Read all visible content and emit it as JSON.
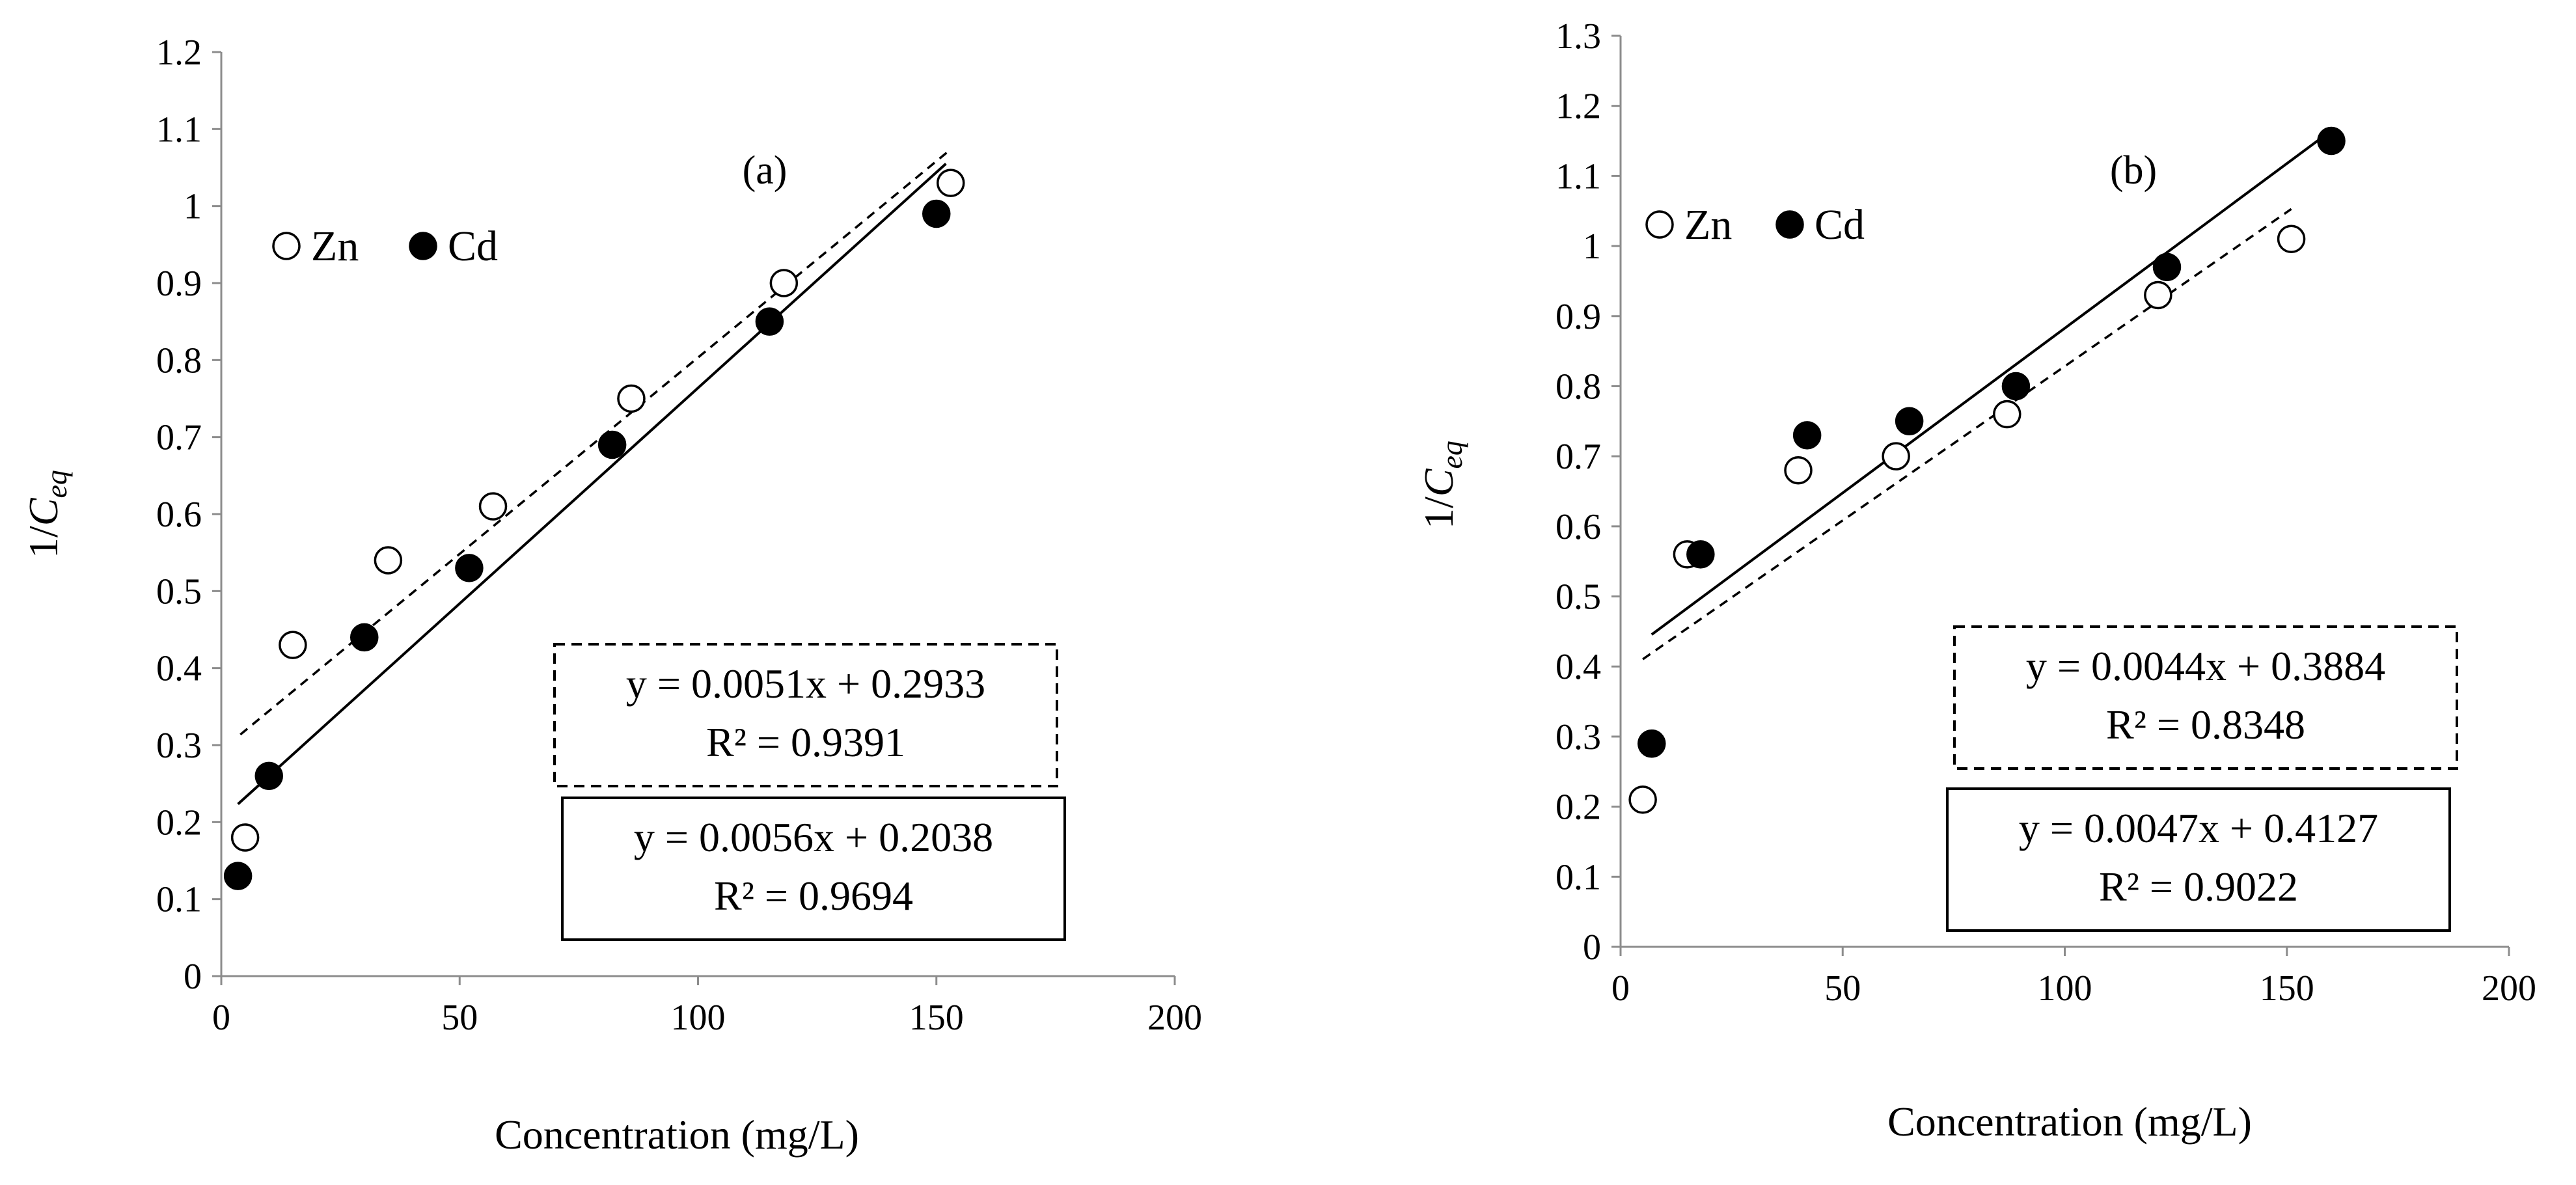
{
  "chart_data": [
    {
      "type": "scatter",
      "panel_label": "(a)",
      "xlabel": "Concentration (mg/L)",
      "ylabel_main": "1/C",
      "ylabel_sub": "eq",
      "xlim": [
        0,
        200
      ],
      "ylim": [
        0,
        1.2
      ],
      "xticks": [
        0,
        50,
        100,
        150,
        200
      ],
      "xtick_labels": [
        "0",
        "50",
        "100",
        "150",
        "200"
      ],
      "yticks": [
        0,
        0.1,
        0.2,
        0.3,
        0.4,
        0.5,
        0.6,
        0.7,
        0.8,
        0.9,
        1,
        1.1,
        1.2
      ],
      "ytick_labels": [
        "0",
        "0.1",
        "0.2",
        "0.3",
        "0.4",
        "0.5",
        "0.6",
        "0.7",
        "0.8",
        "0.9",
        "1",
        "1.1",
        "1.2"
      ],
      "legend_placement": "top-left",
      "series": [
        {
          "name": "Zn",
          "marker": "open-circle",
          "color": "#000000",
          "x": [
            5,
            15,
            35,
            57,
            86,
            118,
            153
          ],
          "y": [
            0.18,
            0.43,
            0.54,
            0.61,
            0.75,
            0.9,
            1.03
          ],
          "trendline": {
            "style": "dashed",
            "slope": 0.0051,
            "intercept": 0.2933,
            "x_range": [
              4,
              153
            ]
          },
          "equation": "y = 0.0051x + 0.2933",
          "r2": "R² = 0.9391"
        },
        {
          "name": "Cd",
          "marker": "filled-circle",
          "color": "#000000",
          "x": [
            3.5,
            10,
            30,
            52,
            82,
            115,
            150
          ],
          "y": [
            0.13,
            0.26,
            0.44,
            0.53,
            0.69,
            0.85,
            0.99
          ],
          "trendline": {
            "style": "solid",
            "slope": 0.0056,
            "intercept": 0.2038,
            "x_range": [
              3.5,
              152
            ]
          },
          "equation": "y = 0.0056x + 0.2038",
          "r2": "R² = 0.9694"
        }
      ]
    },
    {
      "type": "scatter",
      "panel_label": "(b)",
      "xlabel": "Concentration (mg/L)",
      "ylabel_main": "1/C",
      "ylabel_sub": "eq",
      "xlim": [
        0,
        200
      ],
      "ylim": [
        0,
        1.3
      ],
      "xticks": [
        0,
        50,
        100,
        150,
        200
      ],
      "xtick_labels": [
        "0",
        "50",
        "100",
        "150",
        "200"
      ],
      "yticks": [
        0,
        0.1,
        0.2,
        0.3,
        0.4,
        0.5,
        0.6,
        0.7,
        0.8,
        0.9,
        1,
        1.1,
        1.2,
        1.3
      ],
      "ytick_labels": [
        "0",
        "0.1",
        "0.2",
        "0.3",
        "0.4",
        "0.5",
        "0.6",
        "0.7",
        "0.8",
        "0.9",
        "1",
        "1.1",
        "1.2",
        "1.3"
      ],
      "legend_placement": "top-left",
      "series": [
        {
          "name": "Zn",
          "marker": "open-circle",
          "color": "#000000",
          "x": [
            5,
            15,
            40,
            62,
            87,
            121,
            151
          ],
          "y": [
            0.21,
            0.56,
            0.68,
            0.7,
            0.76,
            0.93,
            1.01
          ],
          "trendline": {
            "style": "dashed",
            "slope": 0.0044,
            "intercept": 0.3884,
            "x_range": [
              5,
              151
            ]
          },
          "equation": "y = 0.0044x + 0.3884",
          "r2": "R² = 0.8348"
        },
        {
          "name": "Cd",
          "marker": "filled-circle",
          "color": "#000000",
          "x": [
            7,
            18,
            42,
            65,
            89,
            123,
            160
          ],
          "y": [
            0.29,
            0.56,
            0.73,
            0.75,
            0.8,
            0.97,
            1.15
          ],
          "trendline": {
            "style": "solid",
            "slope": 0.0047,
            "intercept": 0.4127,
            "x_range": [
              7,
              160
            ]
          },
          "equation": "y = 0.0047x + 0.4127",
          "r2": "R² = 0.9022"
        }
      ]
    }
  ]
}
